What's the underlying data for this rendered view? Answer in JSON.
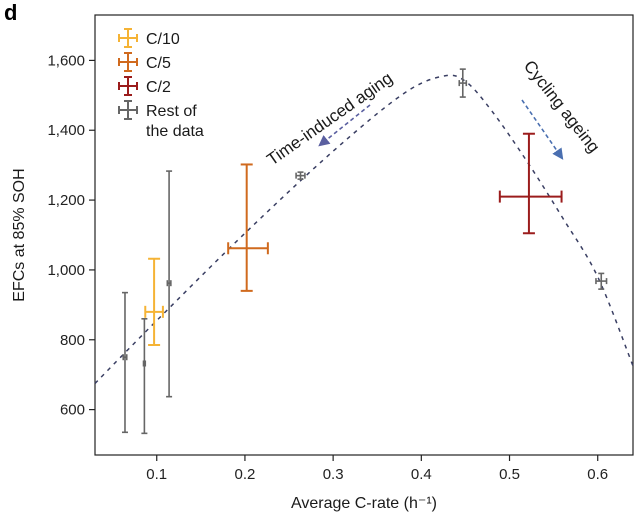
{
  "panel_label": "d",
  "chart_data": {
    "type": "scatter",
    "title": "",
    "xlabel": "Average C-rate (h⁻¹)",
    "ylabel": "EFCs at 85% SOH",
    "xlim": [
      0.03,
      0.64
    ],
    "ylim": [
      470,
      1730
    ],
    "xticks": [
      0.1,
      0.2,
      0.3,
      0.4,
      0.5,
      0.6
    ],
    "xtick_labels": [
      "0.1",
      "0.2",
      "0.3",
      "0.4",
      "0.5",
      "0.6"
    ],
    "yticks": [
      600,
      800,
      1000,
      1200,
      1400,
      1600
    ],
    "ytick_labels": [
      "600",
      "800",
      "1,000",
      "1,200",
      "1,400",
      "1,600"
    ],
    "grid": false,
    "legend_position": "top-left",
    "series": [
      {
        "name": "C/10",
        "color": "#f5b335",
        "points": [
          {
            "x": 0.097,
            "y": 880,
            "xerr": [
              0.087,
              0.107
            ],
            "yerr": [
              785,
              1032
            ]
          }
        ]
      },
      {
        "name": "C/5",
        "color": "#d06a1e",
        "points": [
          {
            "x": 0.202,
            "y": 1062,
            "xerr": [
              0.181,
              0.226
            ],
            "yerr": [
              940,
              1302
            ]
          }
        ]
      },
      {
        "name": "C/2",
        "color": "#9b1c1c",
        "points": [
          {
            "x": 0.522,
            "y": 1210,
            "xerr": [
              0.489,
              0.559
            ],
            "yerr": [
              1105,
              1390
            ]
          }
        ]
      },
      {
        "name": "Rest of\nthe data",
        "color": "#666666",
        "points": [
          {
            "x": 0.064,
            "y": 750,
            "xerr": [
              0.062,
              0.066
            ],
            "yerr": [
              535,
              935
            ]
          },
          {
            "x": 0.086,
            "y": 732,
            "xerr": [
              0.085,
              0.087
            ],
            "yerr": [
              532,
              860
            ]
          },
          {
            "x": 0.114,
            "y": 962,
            "xerr": [
              0.112,
              0.116
            ],
            "yerr": [
              637,
              1283
            ]
          },
          {
            "x": 0.263,
            "y": 1270,
            "xerr": [
              0.258,
              0.268
            ],
            "yerr": [
              1260,
              1280
            ]
          },
          {
            "x": 0.447,
            "y": 1535,
            "xerr": [
              0.443,
              0.451
            ],
            "yerr": [
              1495,
              1575
            ]
          },
          {
            "x": 0.604,
            "y": 968,
            "xerr": [
              0.598,
              0.61
            ],
            "yerr": [
              945,
              990
            ]
          }
        ]
      }
    ],
    "trend_line": {
      "style": "dashed",
      "color": "#3a3f63",
      "points": [
        {
          "x": 0.03,
          "y": 675
        },
        {
          "x": 0.1,
          "y": 855
        },
        {
          "x": 0.2,
          "y": 1105
        },
        {
          "x": 0.3,
          "y": 1340
        },
        {
          "x": 0.38,
          "y": 1505
        },
        {
          "x": 0.425,
          "y": 1555
        },
        {
          "x": 0.45,
          "y": 1540
        },
        {
          "x": 0.48,
          "y": 1455
        },
        {
          "x": 0.52,
          "y": 1310
        },
        {
          "x": 0.56,
          "y": 1150
        },
        {
          "x": 0.6,
          "y": 980
        },
        {
          "x": 0.64,
          "y": 725
        }
      ]
    },
    "annotations": [
      {
        "text": "Time-induced aging",
        "arrow_color": "#5a5fa0"
      },
      {
        "text": "Cycling ageing",
        "arrow_color": "#4a6fb0"
      }
    ]
  }
}
